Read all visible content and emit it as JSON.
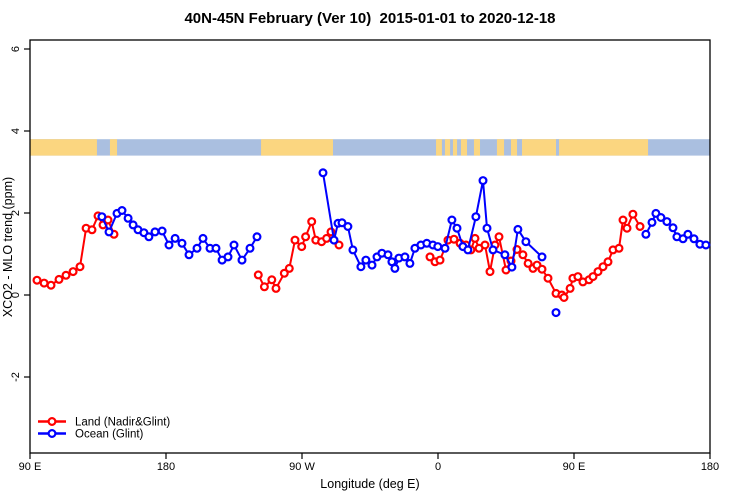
{
  "title": "40N-45N February (Ver 10)  2015-01-01 to 2020-12-18",
  "axes": {
    "x_label": "Longitude (deg E)",
    "y_label": "XCO2 - MLO trend (ppm)",
    "x_ticks": [
      {
        "label": "90 E",
        "lon": 90
      },
      {
        "label": "180",
        "lon": 180
      },
      {
        "label": "90 W",
        "lon": 270
      },
      {
        "label": "0",
        "lon": 360
      },
      {
        "label": "90 E",
        "lon": 450
      },
      {
        "label": "180",
        "lon": 540
      }
    ],
    "y_ticks": [
      {
        "label": "-2",
        "value": -2
      },
      {
        "label": "0",
        "value": 0
      },
      {
        "label": "2",
        "value": 2
      },
      {
        "label": "4",
        "value": 4
      },
      {
        "label": "6",
        "value": 6
      }
    ]
  },
  "legend": {
    "items": [
      {
        "label": "Land (Nadir&Glint)",
        "color": "#ff0000"
      },
      {
        "label": "Ocean (Glint)",
        "color": "#0000ff"
      }
    ]
  },
  "chart_data": {
    "type": "line",
    "title": "40N-45N February (Ver 10)  2015-01-01 to 2020-12-18",
    "xlabel": "Longitude (deg E)",
    "ylabel": "XCO2 - MLO trend (ppm)",
    "xlim_deg_east": [
      90,
      540
    ],
    "ylim": [
      -3.9,
      6.2
    ],
    "grid": false,
    "legend_position": "bottom-left-inside",
    "marker": "open-circle",
    "series": [
      {
        "name": "Land (Nadir&Glint)",
        "color": "#ff0000",
        "segments": [
          [
            [
              94.6,
              0.36
            ],
            [
              99.3,
              0.29
            ],
            [
              103.9,
              0.24
            ],
            [
              109.2,
              0.38
            ],
            [
              113.8,
              0.48
            ],
            [
              118.5,
              0.57
            ],
            [
              123.1,
              0.69
            ],
            [
              127.1,
              1.63
            ],
            [
              131.0,
              1.59
            ],
            [
              135.0,
              1.93
            ],
            [
              138.3,
              1.71
            ],
            [
              141.6,
              1.83
            ],
            [
              145.6,
              1.48
            ]
          ],
          [
            [
              241.1,
              0.49
            ],
            [
              245.1,
              0.2
            ],
            [
              250.0,
              0.37
            ],
            [
              252.8,
              0.16
            ],
            [
              258.3,
              0.53
            ],
            [
              261.6,
              0.65
            ],
            [
              265.4,
              1.34
            ],
            [
              269.8,
              1.18
            ],
            [
              272.4,
              1.42
            ],
            [
              276.4,
              1.79
            ],
            [
              279.1,
              1.34
            ],
            [
              283.0,
              1.3
            ],
            [
              286.3,
              1.38
            ],
            [
              289.2,
              1.54
            ],
            [
              294.5,
              1.22
            ]
          ],
          [
            [
              354.7,
              0.93
            ],
            [
              358.0,
              0.81
            ],
            [
              361.3,
              0.85
            ],
            [
              366.6,
              1.34
            ],
            [
              370.6,
              1.36
            ],
            [
              374.6,
              1.26
            ],
            [
              378.5,
              1.22
            ],
            [
              381.8,
              1.1
            ],
            [
              384.5,
              1.38
            ],
            [
              387.1,
              1.14
            ],
            [
              391.1,
              1.22
            ],
            [
              394.4,
              0.57
            ],
            [
              397.7,
              1.22
            ],
            [
              400.4,
              1.42
            ],
            [
              405.0,
              0.61
            ],
            [
              408.3,
              0.83
            ],
            [
              412.3,
              1.11
            ],
            [
              416.2,
              0.98
            ],
            [
              419.6,
              0.77
            ],
            [
              422.9,
              0.65
            ],
            [
              425.5,
              0.73
            ],
            [
              428.8,
              0.63
            ],
            [
              432.8,
              0.41
            ],
            [
              438.1,
              0.04
            ],
            [
              442.0,
              0.0
            ],
            [
              443.4,
              -0.06
            ],
            [
              447.4,
              0.16
            ],
            [
              449.3,
              0.41
            ],
            [
              452.6,
              0.45
            ],
            [
              455.9,
              0.32
            ],
            [
              459.9,
              0.37
            ],
            [
              462.6,
              0.45
            ],
            [
              465.9,
              0.57
            ],
            [
              469.2,
              0.69
            ],
            [
              472.5,
              0.81
            ],
            [
              475.8,
              1.1
            ],
            [
              479.8,
              1.14
            ],
            [
              482.4,
              1.83
            ],
            [
              485.1,
              1.63
            ],
            [
              489.0,
              1.97
            ],
            [
              493.7,
              1.67
            ]
          ]
        ]
      },
      {
        "name": "Ocean (Glint)",
        "color": "#0000ff",
        "segments": [
          [
            [
              137.6,
              1.91
            ],
            [
              142.3,
              1.54
            ],
            [
              147.6,
              1.99
            ],
            [
              150.9,
              2.06
            ],
            [
              154.9,
              1.87
            ],
            [
              158.2,
              1.71
            ],
            [
              161.5,
              1.59
            ],
            [
              165.4,
              1.52
            ],
            [
              168.7,
              1.42
            ],
            [
              172.7,
              1.54
            ],
            [
              177.4,
              1.56
            ],
            [
              182.0,
              1.22
            ],
            [
              186.0,
              1.38
            ],
            [
              190.6,
              1.26
            ],
            [
              195.2,
              0.98
            ],
            [
              200.5,
              1.14
            ],
            [
              204.5,
              1.38
            ],
            [
              209.1,
              1.14
            ],
            [
              213.1,
              1.14
            ],
            [
              217.1,
              0.85
            ],
            [
              221.0,
              0.93
            ],
            [
              225.0,
              1.22
            ],
            [
              230.3,
              0.85
            ],
            [
              235.6,
              1.14
            ],
            [
              240.2,
              1.42
            ]
          ],
          [
            [
              283.9,
              2.98
            ],
            [
              291.2,
              1.34
            ],
            [
              293.8,
              1.75
            ],
            [
              296.5,
              1.76
            ],
            [
              300.4,
              1.67
            ],
            [
              303.7,
              1.1
            ],
            [
              309.0,
              0.69
            ],
            [
              312.3,
              0.85
            ],
            [
              316.3,
              0.73
            ],
            [
              319.6,
              0.93
            ],
            [
              322.9,
              1.02
            ],
            [
              326.9,
              0.98
            ],
            [
              329.5,
              0.81
            ],
            [
              331.5,
              0.65
            ],
            [
              334.1,
              0.9
            ],
            [
              338.1,
              0.93
            ],
            [
              341.4,
              0.77
            ],
            [
              344.7,
              1.14
            ],
            [
              348.7,
              1.22
            ],
            [
              352.6,
              1.26
            ],
            [
              356.6,
              1.22
            ],
            [
              359.9,
              1.18
            ],
            [
              364.6,
              1.14
            ],
            [
              369.2,
              1.83
            ],
            [
              372.6,
              1.63
            ],
            [
              376.5,
              1.18
            ],
            [
              379.8,
              1.1
            ],
            [
              385.1,
              1.91
            ],
            [
              389.8,
              2.79
            ],
            [
              392.4,
              1.63
            ],
            [
              396.4,
              1.1
            ],
            [
              404.3,
              0.98
            ],
            [
              408.9,
              0.68
            ],
            [
              412.9,
              1.6
            ],
            [
              418.2,
              1.3
            ],
            [
              428.8,
              0.93
            ]
          ],
          [
            [
              438.1,
              -0.43
            ]
          ],
          [
            [
              497.6,
              1.48
            ],
            [
              501.6,
              1.77
            ],
            [
              504.2,
              1.99
            ],
            [
              507.5,
              1.89
            ],
            [
              511.5,
              1.79
            ],
            [
              515.5,
              1.64
            ],
            [
              518.1,
              1.42
            ],
            [
              522.1,
              1.37
            ],
            [
              525.4,
              1.48
            ],
            [
              529.4,
              1.37
            ],
            [
              533.3,
              1.24
            ],
            [
              537.3,
              1.22
            ]
          ]
        ]
      }
    ],
    "surface_band": {
      "description": "land/ocean strip along 40N-45N",
      "value_range": [
        3.4,
        3.8
      ],
      "land_color": "#fbd680",
      "ocean_color": "#aabfe0",
      "land_segments_deg_east": [
        [
          90,
          134.3
        ],
        [
          142.9,
          147.6
        ],
        [
          242.9,
          290.5
        ],
        [
          358.7,
          362.6
        ],
        [
          364.6,
          368.0
        ],
        [
          369.9,
          372.6
        ],
        [
          375.2,
          379.2
        ],
        [
          383.8,
          387.8
        ],
        [
          399.0,
          403.7
        ],
        [
          408.3,
          499.0
        ]
      ],
      "ocean_notches_deg_east": [
        [
          412.3,
          415.6
        ],
        [
          438.1,
          440.1
        ]
      ]
    }
  }
}
